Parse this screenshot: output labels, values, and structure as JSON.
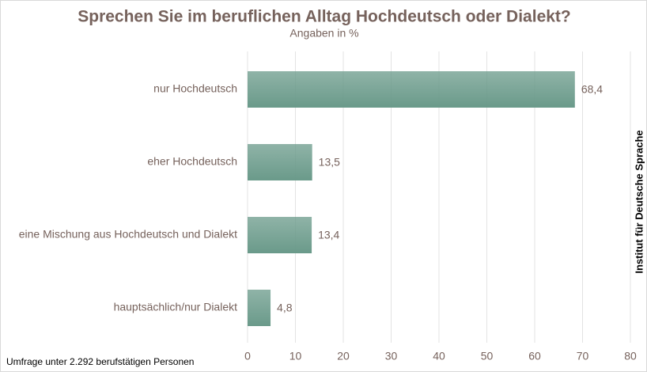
{
  "chart_data": {
    "type": "hbar",
    "title": "Sprechen Sie im beruflichen Alltag Hochdeutsch oder Dialekt?",
    "subtitle": "Angaben in %",
    "categories": [
      "nur Hochdeutsch",
      "eher Hochdeutsch",
      "eine Mischung aus Hochdeutsch und Dialekt",
      "hauptsächlich/nur Dialekt"
    ],
    "values": [
      68.4,
      13.5,
      13.4,
      4.8
    ],
    "value_labels": [
      "68,4",
      "13,5",
      "13,4",
      "4,8"
    ],
    "color": "#6a9a8a",
    "xlim": [
      0,
      80
    ],
    "xticks": [
      0,
      10,
      20,
      30,
      40,
      50,
      60,
      70,
      80
    ],
    "grid": true,
    "note": "Umfrage unter 2.292 berufstätigen Personen",
    "source": "Institut für Deutsche Sprache"
  }
}
